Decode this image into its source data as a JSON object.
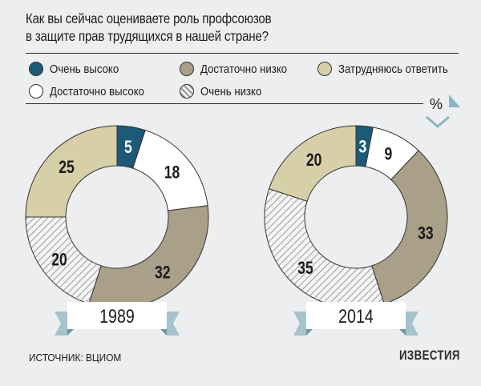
{
  "title_lines": [
    "Как вы сейчас оцениваете роль профсоюзов",
    "в защите прав трудящихся в нашей стране?"
  ],
  "unit_label": "%",
  "source": "ИСТОЧНИК: ВЦИОМ",
  "logo_text": "ИЗВЕСТИЯ",
  "colors": {
    "very_high": "#1d5a78",
    "fairly_high": "#ffffff",
    "fairly_low": "#aa9f89",
    "very_low": "hatch",
    "hard_to_say": "#d6cfa7",
    "ribbon": "#a6c2cc"
  },
  "legend": [
    {
      "key": "very_high",
      "label": "Очень высоко"
    },
    {
      "key": "fairly_low",
      "label": "Достаточно низко"
    },
    {
      "key": "hard_to_say",
      "label": "Затрудняюсь ответить"
    },
    {
      "key": "fairly_high",
      "label": "Достаточно высоко"
    },
    {
      "key": "very_low",
      "label": "Очень низко"
    }
  ],
  "chart_data": [
    {
      "type": "pie",
      "year": "1989",
      "slices": [
        {
          "key": "very_high",
          "label": "Очень высоко",
          "value": 5
        },
        {
          "key": "fairly_high",
          "label": "Достаточно высоко",
          "value": 18
        },
        {
          "key": "fairly_low",
          "label": "Достаточно низко",
          "value": 32
        },
        {
          "key": "very_low",
          "label": "Очень низко",
          "value": 20
        },
        {
          "key": "hard_to_say",
          "label": "Затрудняюсь ответить",
          "value": 25
        }
      ]
    },
    {
      "type": "pie",
      "year": "2014",
      "slices": [
        {
          "key": "very_high",
          "label": "Очень высоко",
          "value": 3
        },
        {
          "key": "fairly_high",
          "label": "Достаточно высоко",
          "value": 9
        },
        {
          "key": "fairly_low",
          "label": "Достаточно низко",
          "value": 33
        },
        {
          "key": "very_low",
          "label": "Очень низко",
          "value": 35
        },
        {
          "key": "hard_to_say",
          "label": "Затрудняюсь ответить",
          "value": 20
        }
      ]
    }
  ]
}
